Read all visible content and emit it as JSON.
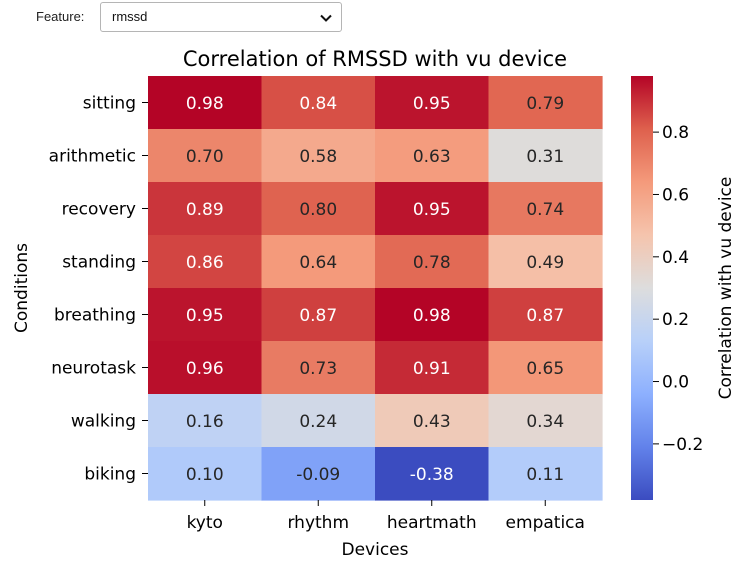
{
  "widget": {
    "label": "Feature:",
    "selected": "rmssd"
  },
  "chart_data": {
    "type": "heatmap",
    "title": "Correlation of RMSSD with vu device",
    "xlabel": "Devices",
    "ylabel": "Conditions",
    "colorbar_label": "Correlation with vu device",
    "colormap": "coolwarm",
    "vmin": -0.38,
    "vmax": 0.98,
    "colorbar_ticks": [
      -0.2,
      0.0,
      0.2,
      0.4,
      0.6,
      0.8
    ],
    "colorbar_tick_labels": [
      "−0.2",
      "0.0",
      "0.2",
      "0.4",
      "0.6",
      "0.8"
    ],
    "x": [
      "kyto",
      "rhythm",
      "heartmath",
      "empatica"
    ],
    "y": [
      "sitting",
      "arithmetic",
      "recovery",
      "standing",
      "breathing",
      "neurotask",
      "walking",
      "biking"
    ],
    "values": [
      [
        0.98,
        0.84,
        0.95,
        0.79
      ],
      [
        0.7,
        0.58,
        0.63,
        0.31
      ],
      [
        0.89,
        0.8,
        0.95,
        0.74
      ],
      [
        0.86,
        0.64,
        0.78,
        0.49
      ],
      [
        0.95,
        0.87,
        0.98,
        0.87
      ],
      [
        0.96,
        0.73,
        0.91,
        0.65
      ],
      [
        0.16,
        0.24,
        0.43,
        0.34
      ],
      [
        0.1,
        -0.09,
        -0.38,
        0.11
      ]
    ]
  }
}
